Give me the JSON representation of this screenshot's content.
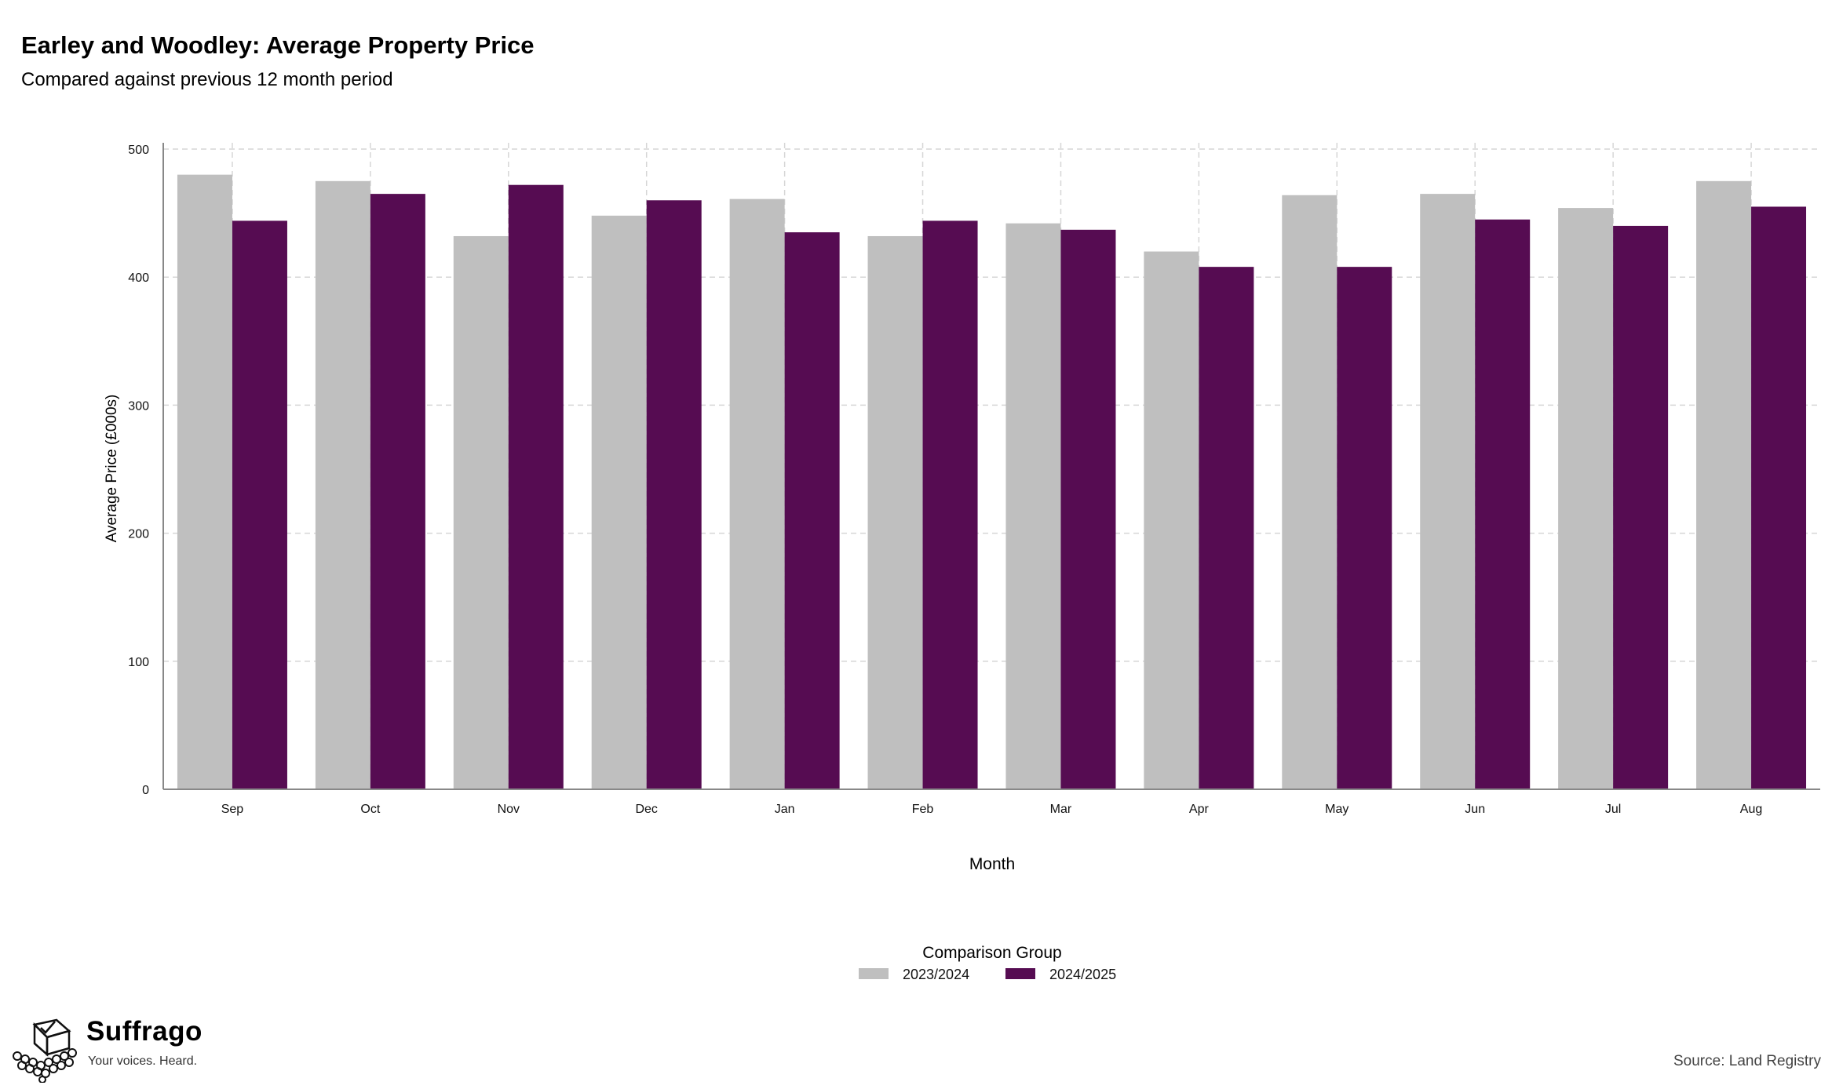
{
  "header": {
    "title": "Earley and Woodley: Average Property Price",
    "subtitle": "Compared against previous 12 month period"
  },
  "chart_data": {
    "type": "bar",
    "title": "Earley and Woodley: Average Property Price",
    "subtitle": "Compared against previous 12 month period",
    "xlabel": "Month",
    "ylabel": "Average Price (£000s)",
    "categories": [
      "Sep",
      "Oct",
      "Nov",
      "Dec",
      "Jan",
      "Feb",
      "Mar",
      "Apr",
      "May",
      "Jun",
      "Jul",
      "Aug"
    ],
    "series": [
      {
        "name": "2023/2024",
        "color": "#bfbfbf",
        "values": [
          480,
          475,
          432,
          448,
          461,
          432,
          442,
          420,
          464,
          465,
          454,
          475
        ]
      },
      {
        "name": "2024/2025",
        "color": "#560c52",
        "values": [
          444,
          465,
          472,
          460,
          435,
          444,
          437,
          408,
          408,
          445,
          440,
          455
        ]
      }
    ],
    "ylim": [
      0,
      500
    ],
    "yticks": [
      0,
      100,
      200,
      300,
      400,
      500
    ],
    "grid": true,
    "legend": {
      "title": "Comparison Group",
      "position": "bottom"
    }
  },
  "branding": {
    "name": "Suffrago",
    "tagline": "Your voices. Heard.",
    "logo_icon": "ballot-box-icon"
  },
  "source_note": "Source: Land Registry"
}
